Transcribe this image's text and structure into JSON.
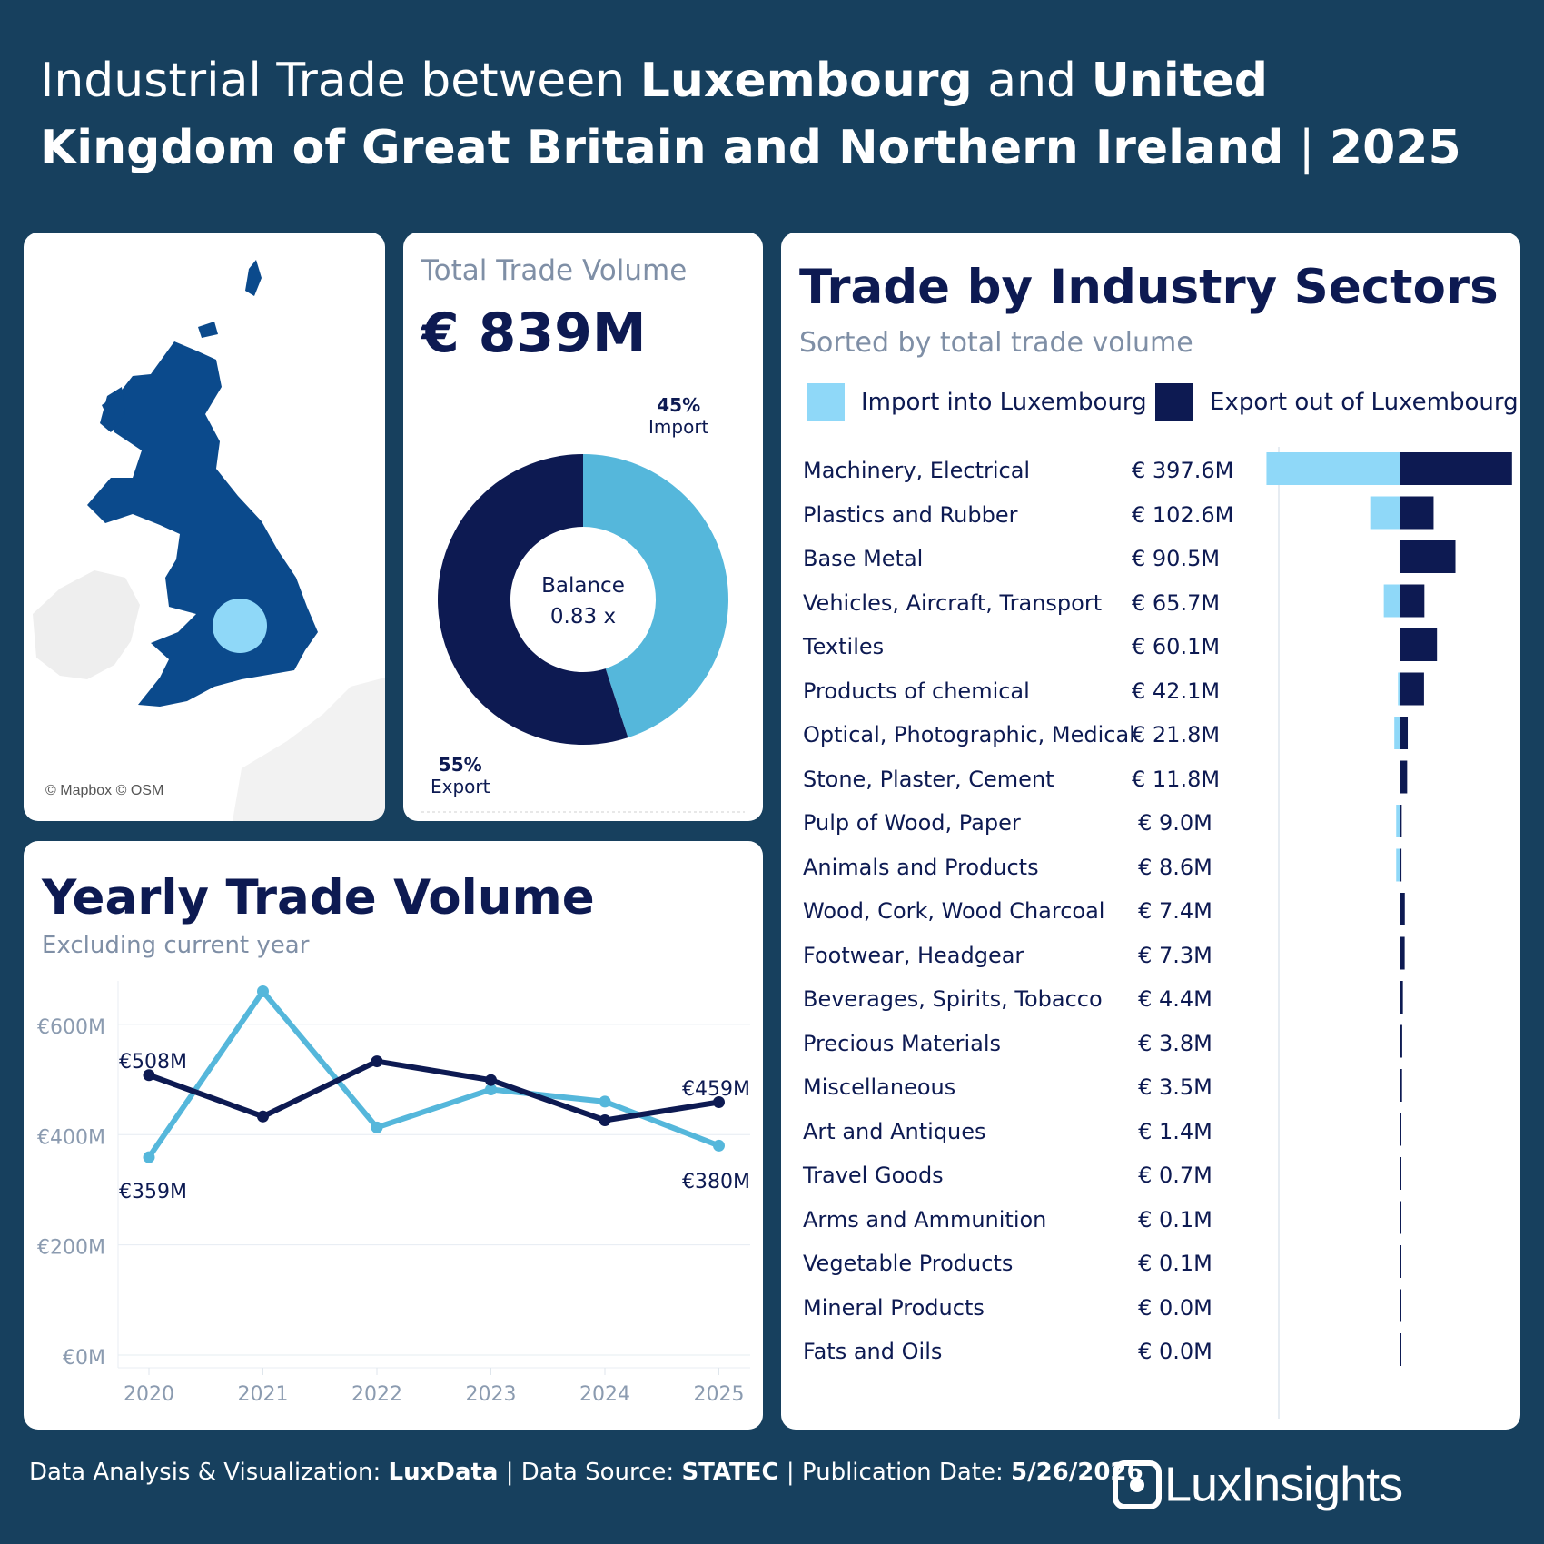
{
  "title": {
    "p1": "Industrial Trade between ",
    "country_a": "Luxembourg",
    "p2": " and ",
    "country_b": "United Kingdom of Great Britain and Northern Ireland",
    "p3": " | ",
    "year": "2025"
  },
  "map": {
    "attribution": "© Mapbox © OSM"
  },
  "total": {
    "label": "Total Trade Volume",
    "value": "€ 839M",
    "import_pct": "45%",
    "import_label": "Import",
    "export_pct": "55%",
    "export_label": "Export",
    "balance_label": "Balance",
    "balance_value": "0.83 x",
    "import_share": 0.45,
    "colors": {
      "import": "#55b7db",
      "export": "#0d1a52"
    }
  },
  "yearly": {
    "title": "Yearly Trade Volume",
    "subtitle": "Excluding current year",
    "labels": {
      "export_first": "€508M",
      "import_first": "€359M",
      "export_last": "€459M",
      "import_last": "€380M"
    }
  },
  "sectors": {
    "title": "Trade by Industry Sectors",
    "subtitle": "Sorted by total trade volume",
    "legend_import": "Import into Luxembourg",
    "legend_export": "Export out of Luxembourg",
    "colors": {
      "import": "#8fd8f8",
      "export": "#0d1a52"
    }
  },
  "footer": {
    "p1": "Data Analysis & Visualization: ",
    "analysis": "LuxData",
    "p2": " | Data Source: ",
    "source": "STATEC",
    "p3": " | Publication Date: ",
    "date": "5/26/2026"
  },
  "logo": "LuxInsights",
  "chart_data": [
    {
      "type": "line",
      "x": [
        "2020",
        "2021",
        "2022",
        "2023",
        "2024",
        "2025"
      ],
      "series": [
        {
          "key": "import",
          "values": [
            359,
            660,
            413,
            482,
            460,
            380
          ],
          "color": "#55b7db"
        },
        {
          "key": "export",
          "values": [
            508,
            433,
            533,
            499,
            426,
            459
          ],
          "color": "#0d1a52"
        }
      ],
      "yticks": [
        "€600M",
        "€400M",
        "€200M",
        "€0M"
      ],
      "ylim": [
        0,
        700
      ]
    },
    {
      "type": "bar",
      "categories": [
        "Machinery, Electrical",
        "Plastics and Rubber",
        "Base Metal",
        "Vehicles, Aircraft, Transport",
        "Textiles",
        "Products of chemical",
        "Optical, Photographic, Medical",
        "Stone, Plaster, Cement",
        "Pulp of Wood, Paper",
        "Animals and Products",
        "Wood, Cork, Wood Charcoal",
        "Footwear, Headgear",
        "Beverages, Spirits, Tobacco",
        "Precious Materials",
        "Miscellaneous",
        "Art and Antiques",
        "Travel Goods",
        "Arms and Ammunition",
        "Vegetable Products",
        "Mineral Products",
        "Fats and Oils"
      ],
      "totals_label": [
        "€ 397.6M",
        "€ 102.6M",
        "€ 90.5M",
        "€ 65.7M",
        "€ 60.1M",
        "€ 42.1M",
        "€ 21.8M",
        "€ 11.8M",
        "€ 9.0M",
        "€ 8.6M",
        "€ 7.4M",
        "€ 7.3M",
        "€ 4.4M",
        "€ 3.8M",
        "€ 3.5M",
        "€ 1.4M",
        "€ 0.7M",
        "€ 0.1M",
        "€ 0.1M",
        "€ 0.0M",
        "€ 0.0M"
      ],
      "series": [
        {
          "name": "Import into Luxembourg",
          "values": [
            217,
            49,
            1.5,
            27,
            1,
            4,
            10,
            1,
            7,
            7,
            0.4,
            0.5,
            0.5,
            1,
            1,
            0.2,
            0.1,
            0.05,
            0.05,
            0,
            0
          ]
        },
        {
          "name": "Export out of Luxembourg",
          "values": [
            180.6,
            53.6,
            89,
            38.7,
            59.1,
            38.1,
            11.8,
            10.8,
            2,
            1.6,
            7,
            6.8,
            3.9,
            2.8,
            2.5,
            1.2,
            0.6,
            0.05,
            0.05,
            0,
            0
          ]
        }
      ]
    }
  ]
}
